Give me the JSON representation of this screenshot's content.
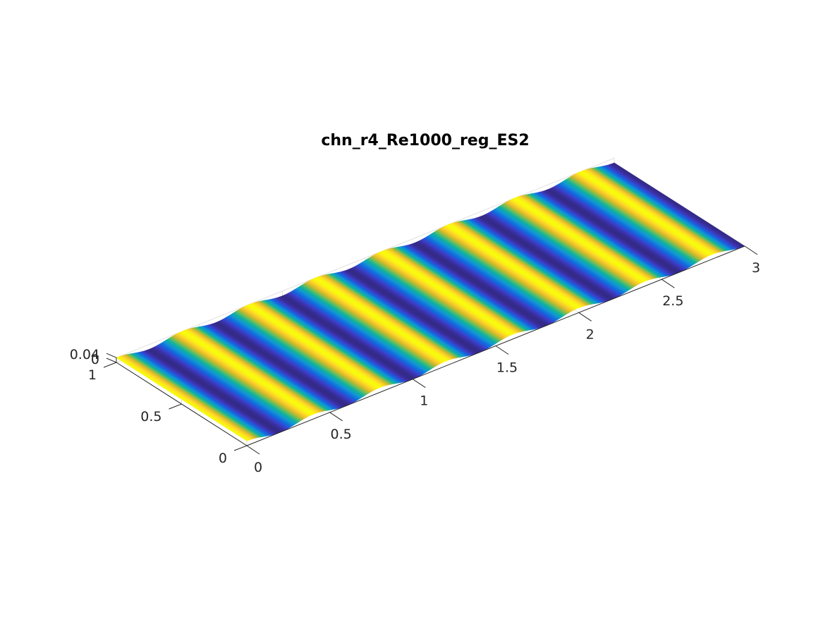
{
  "chart_data": {
    "type": "surface",
    "title": "chn_r4_Re1000_reg_ES2",
    "xlabel": "",
    "ylabel": "",
    "zlabel": "",
    "xlim": [
      0,
      3
    ],
    "ylim": [
      0,
      1
    ],
    "zlim": [
      0,
      0.04
    ],
    "x_ticks": [
      0,
      0.5,
      1,
      1.5,
      2,
      2.5,
      3
    ],
    "x_tick_labels": [
      "0",
      "0.5",
      "1",
      "1.5",
      "2",
      "2.5",
      "3"
    ],
    "y_ticks": [
      0,
      0.5,
      1
    ],
    "y_tick_labels": [
      "0",
      "0.5",
      "1"
    ],
    "z_ticks": [
      0,
      0.04
    ],
    "z_tick_labels": [
      "0",
      "0.04"
    ],
    "surface": {
      "function": "z = A*(1 + cos(2*pi*x/wavelength))/2",
      "amplitude": 0.04,
      "wavelength": 0.4,
      "colormap": "parula",
      "color_range": [
        0,
        0.04
      ]
    },
    "grid": true
  }
}
